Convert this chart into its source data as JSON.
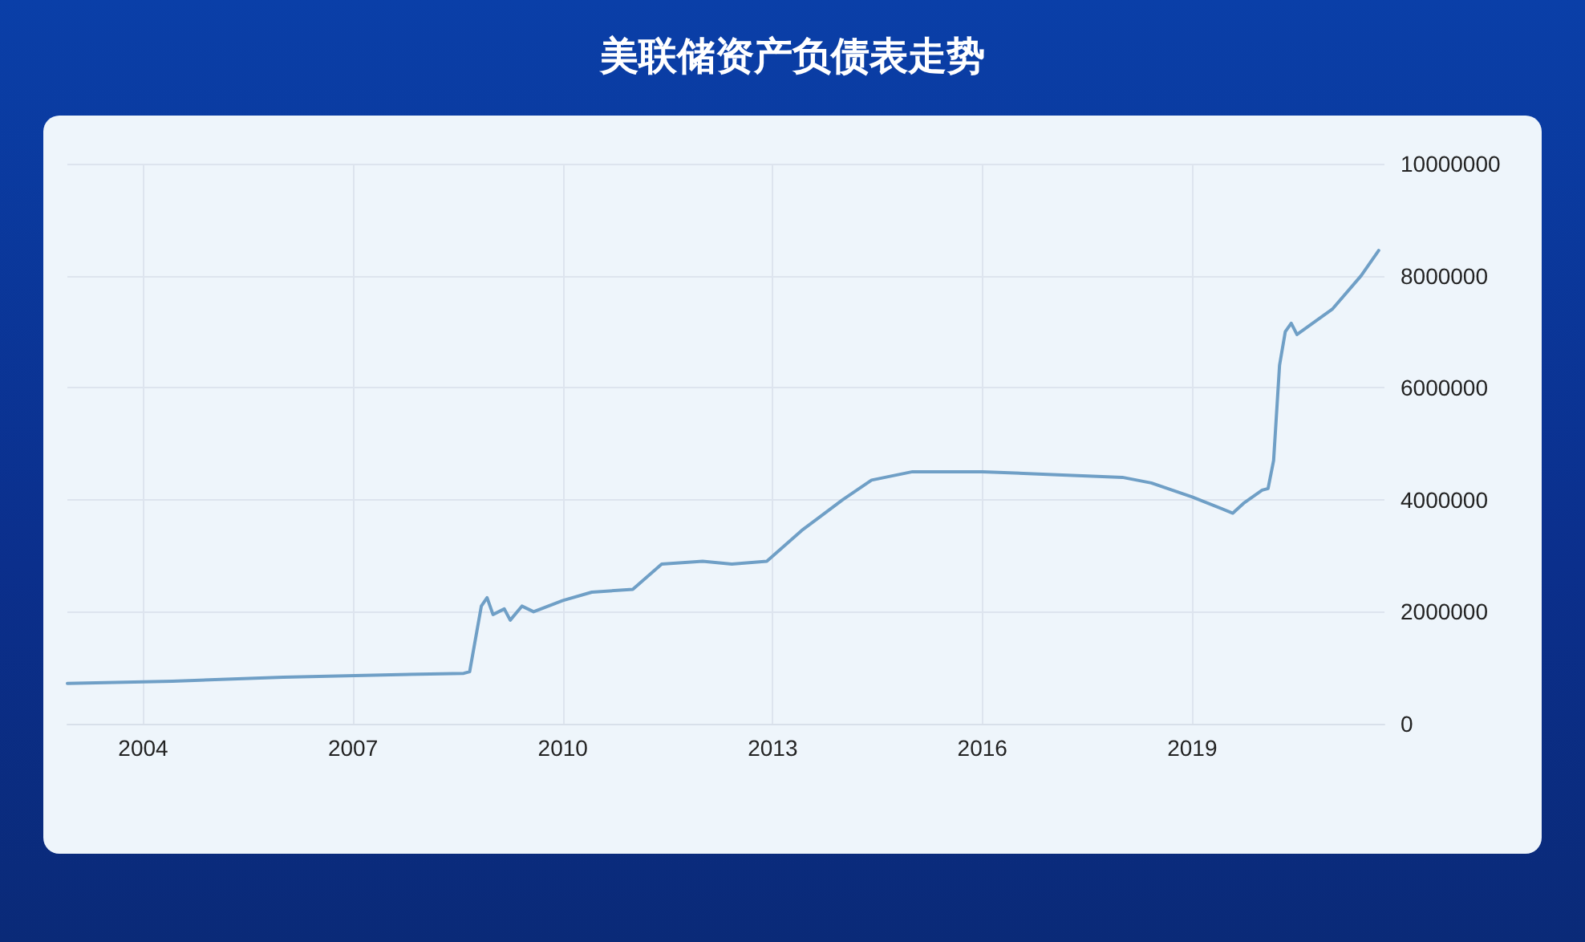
{
  "chart_data": {
    "type": "line",
    "title": "美联储资产负债表走势",
    "x": [
      "2002-12",
      "2004-06",
      "2006-01",
      "2007-06",
      "2008-08",
      "2008-09",
      "2008-11",
      "2008-12",
      "2009-01",
      "2009-03",
      "2009-04",
      "2009-06",
      "2009-08",
      "2010-01",
      "2010-06",
      "2011-01",
      "2011-06",
      "2012-01",
      "2012-06",
      "2012-12",
      "2013-06",
      "2014-01",
      "2014-06",
      "2015-01",
      "2016-01",
      "2017-01",
      "2018-01",
      "2018-06",
      "2019-01",
      "2019-08",
      "2019-10",
      "2020-01",
      "2020-02",
      "2020-03",
      "2020-04",
      "2020-05",
      "2020-06",
      "2020-07",
      "2021-01",
      "2021-06",
      "2021-09"
    ],
    "series": [
      {
        "color": "#6f9fc6",
        "values": [
          720000,
          760000,
          830000,
          870000,
          900000,
          930000,
          2100000,
          2250000,
          1950000,
          2050000,
          1850000,
          2100000,
          2000000,
          2200000,
          2350000,
          2400000,
          2850000,
          2900000,
          2850000,
          2900000,
          3450000,
          4000000,
          4350000,
          4500000,
          4500000,
          4450000,
          4400000,
          4300000,
          4050000,
          3760000,
          3950000,
          4170000,
          4200000,
          4700000,
          6400000,
          7000000,
          7150000,
          6950000,
          7400000,
          8000000,
          8450000
        ]
      }
    ],
    "xlim": [
      "2002-12",
      "2021-10"
    ],
    "xticks": [
      "2004",
      "2007",
      "2010",
      "2013",
      "2016",
      "2019"
    ],
    "ylim": [
      0,
      10000000
    ],
    "yticks": [
      0,
      2000000,
      4000000,
      6000000,
      8000000,
      10000000
    ],
    "grid": true,
    "marker": "none",
    "line_style": "solid"
  }
}
